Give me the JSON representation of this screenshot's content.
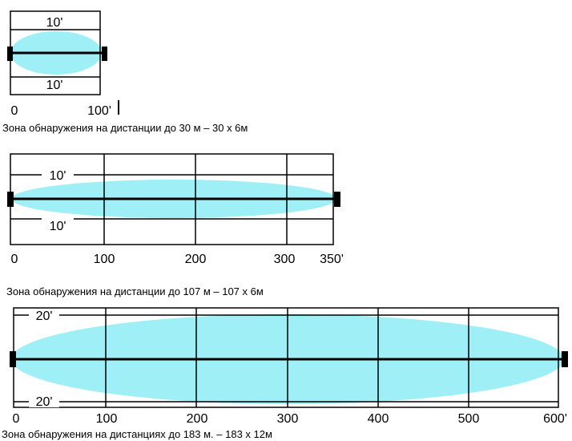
{
  "diagrams": [
    {
      "width_labels": [
        "10'",
        "10'"
      ],
      "axis_ticks": [
        "0",
        "100'"
      ],
      "caption": "Зона обнаружения на дистанции до 30 м – 30 х 6м"
    },
    {
      "width_labels": [
        "10'",
        "10'"
      ],
      "axis_ticks": [
        "0",
        "100",
        "200",
        "300",
        "350'"
      ],
      "caption": "Зона обнаружения на дистанции до 107 м – 107 х 6м"
    },
    {
      "width_labels": [
        "20'",
        "20'"
      ],
      "axis_ticks": [
        "0",
        "100",
        "200",
        "300",
        "400",
        "500",
        "600'"
      ],
      "caption": "Зона обнаружения на дистанциях до 183 м. – 183 х 12м"
    }
  ],
  "colors": {
    "detection_zone": "#9ef0f6",
    "lines": "#000000"
  }
}
